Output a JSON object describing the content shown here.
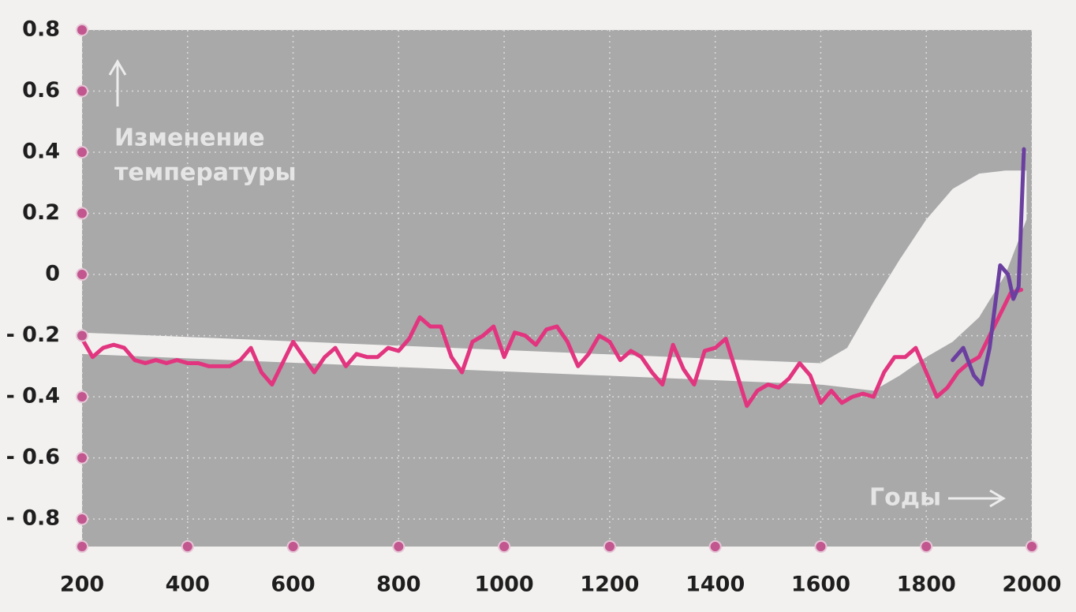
{
  "chart_data": {
    "type": "line",
    "annotations": [
      "Изменение",
      "температуры",
      "Годы"
    ],
    "xlim": [
      200,
      2000
    ],
    "ylim": [
      -0.89,
      0.8
    ],
    "xticks": [
      200,
      400,
      600,
      800,
      1000,
      1200,
      1400,
      1600,
      1800,
      2000
    ],
    "yticks": [
      0.8,
      0.6,
      0.4,
      0.2,
      0,
      {
        "value": -0.2,
        "label": "- 0.2"
      },
      {
        "value": -0.4,
        "label": "- 0.4"
      },
      {
        "value": -0.6,
        "label": "- 0.6"
      },
      {
        "value": -0.8,
        "label": "- 0.8"
      }
    ],
    "grid": true,
    "background": "#a9a9a9",
    "tick_color": "#c2568f",
    "band": {
      "color": "#f1f0ef",
      "x": [
        200,
        1600,
        1650,
        1700,
        1750,
        1800,
        1850,
        1900,
        1950,
        1990
      ],
      "upper": [
        -0.19,
        -0.29,
        -0.24,
        -0.09,
        0.05,
        0.18,
        0.28,
        0.33,
        0.34,
        0.34
      ],
      "lower": [
        -0.26,
        -0.36,
        -0.37,
        -0.38,
        -0.33,
        -0.27,
        -0.22,
        -0.14,
        0.0,
        0.18
      ]
    },
    "series": [
      {
        "color": "#e2357f",
        "x": [
          200,
          220,
          240,
          260,
          280,
          300,
          320,
          340,
          360,
          380,
          400,
          420,
          440,
          460,
          480,
          500,
          520,
          540,
          560,
          580,
          600,
          620,
          640,
          660,
          680,
          700,
          720,
          740,
          760,
          780,
          800,
          820,
          840,
          860,
          880,
          900,
          920,
          940,
          960,
          980,
          1000,
          1020,
          1040,
          1060,
          1080,
          1100,
          1120,
          1140,
          1160,
          1180,
          1200,
          1220,
          1240,
          1260,
          1280,
          1300,
          1320,
          1340,
          1360,
          1380,
          1400,
          1420,
          1440,
          1460,
          1480,
          1500,
          1520,
          1540,
          1560,
          1580,
          1600,
          1620,
          1640,
          1660,
          1680,
          1700,
          1720,
          1740,
          1760,
          1780,
          1800,
          1820,
          1840,
          1860,
          1880,
          1900,
          1920,
          1940,
          1960,
          1980
        ],
        "values": [
          -0.21,
          -0.27,
          -0.24,
          -0.23,
          -0.24,
          -0.28,
          -0.29,
          -0.28,
          -0.29,
          -0.28,
          -0.29,
          -0.29,
          -0.3,
          -0.3,
          -0.3,
          -0.28,
          -0.24,
          -0.32,
          -0.36,
          -0.29,
          -0.22,
          -0.27,
          -0.32,
          -0.27,
          -0.24,
          -0.3,
          -0.26,
          -0.27,
          -0.27,
          -0.24,
          -0.25,
          -0.21,
          -0.14,
          -0.17,
          -0.17,
          -0.27,
          -0.32,
          -0.22,
          -0.2,
          -0.17,
          -0.27,
          -0.19,
          -0.2,
          -0.23,
          -0.18,
          -0.17,
          -0.22,
          -0.3,
          -0.26,
          -0.2,
          -0.22,
          -0.28,
          -0.25,
          -0.27,
          -0.32,
          -0.36,
          -0.23,
          -0.31,
          -0.36,
          -0.25,
          -0.24,
          -0.21,
          -0.32,
          -0.43,
          -0.38,
          -0.36,
          -0.37,
          -0.34,
          -0.29,
          -0.33,
          -0.42,
          -0.38,
          -0.42,
          -0.4,
          -0.39,
          -0.4,
          -0.32,
          -0.27,
          -0.27,
          -0.24,
          -0.32,
          -0.4,
          -0.37,
          -0.32,
          -0.29,
          -0.27,
          -0.2,
          -0.13,
          -0.06,
          -0.05
        ]
      },
      {
        "color": "#6b3fa0",
        "x": [
          1850,
          1870,
          1890,
          1905,
          1920,
          1940,
          1955,
          1965,
          1975,
          1985
        ],
        "values": [
          -0.28,
          -0.24,
          -0.33,
          -0.36,
          -0.24,
          0.03,
          0.0,
          -0.08,
          -0.04,
          0.41
        ]
      }
    ]
  }
}
